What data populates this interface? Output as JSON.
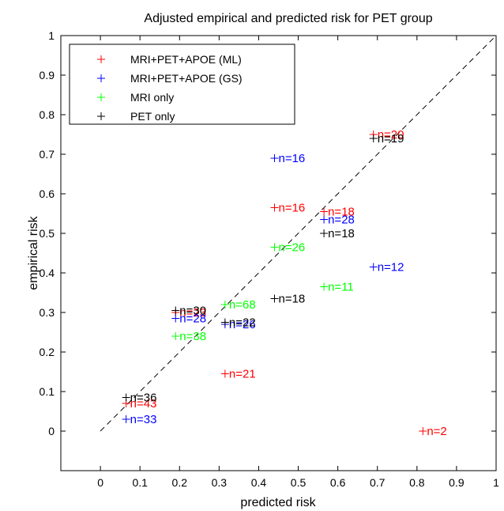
{
  "chart_data": {
    "type": "scatter",
    "title": "Adjusted empirical and predicted risk for PET group",
    "xlabel": "predicted risk",
    "ylabel": "empirical risk",
    "xlim": [
      -0.1,
      1.0
    ],
    "ylim": [
      -0.1,
      1.0
    ],
    "xticks": [
      "0",
      "0.1",
      "0.2",
      "0.3",
      "0.4",
      "0.5",
      "0.6",
      "0.7",
      "0.8",
      "0.9",
      "1"
    ],
    "yticks": [
      "0",
      "0.1",
      "0.2",
      "0.3",
      "0.4",
      "0.5",
      "0.6",
      "0.7",
      "0.8",
      "0.9",
      "1"
    ],
    "grid": false,
    "legend_position": "top-left",
    "reference_line": "y = x (dashed)",
    "series": [
      {
        "name": "MRI+PET+APOE (ML)",
        "color": "#ff0000",
        "points": [
          {
            "x": 0.065,
            "y": 0.07,
            "label": "n=43"
          },
          {
            "x": 0.19,
            "y": 0.3,
            "label": "n=23"
          },
          {
            "x": 0.315,
            "y": 0.145,
            "label": "n=21"
          },
          {
            "x": 0.44,
            "y": 0.565,
            "label": "n=16"
          },
          {
            "x": 0.565,
            "y": 0.555,
            "label": "n=18"
          },
          {
            "x": 0.69,
            "y": 0.75,
            "label": "n=20"
          },
          {
            "x": 0.815,
            "y": 0.0,
            "label": "n=2"
          }
        ]
      },
      {
        "name": "MRI+PET+APOE (GS)",
        "color": "#0000ff",
        "points": [
          {
            "x": 0.065,
            "y": 0.03,
            "label": "n=33"
          },
          {
            "x": 0.19,
            "y": 0.285,
            "label": "n=28"
          },
          {
            "x": 0.315,
            "y": 0.27,
            "label": "n=26"
          },
          {
            "x": 0.44,
            "y": 0.69,
            "label": "n=16"
          },
          {
            "x": 0.565,
            "y": 0.535,
            "label": "n=28"
          },
          {
            "x": 0.69,
            "y": 0.415,
            "label": "n=12"
          }
        ]
      },
      {
        "name": "MRI only",
        "color": "#00ff00",
        "points": [
          {
            "x": 0.19,
            "y": 0.24,
            "label": "n=38"
          },
          {
            "x": 0.315,
            "y": 0.32,
            "label": "n=68"
          },
          {
            "x": 0.44,
            "y": 0.465,
            "label": "n=26"
          },
          {
            "x": 0.565,
            "y": 0.365,
            "label": "n=11"
          }
        ]
      },
      {
        "name": "PET only",
        "color": "#000000",
        "points": [
          {
            "x": 0.065,
            "y": 0.085,
            "label": "n=36"
          },
          {
            "x": 0.19,
            "y": 0.305,
            "label": "n=30"
          },
          {
            "x": 0.315,
            "y": 0.275,
            "label": "n=22"
          },
          {
            "x": 0.44,
            "y": 0.335,
            "label": "n=18"
          },
          {
            "x": 0.565,
            "y": 0.5,
            "label": "n=18"
          },
          {
            "x": 0.69,
            "y": 0.74,
            "label": "n=19"
          }
        ]
      }
    ]
  }
}
